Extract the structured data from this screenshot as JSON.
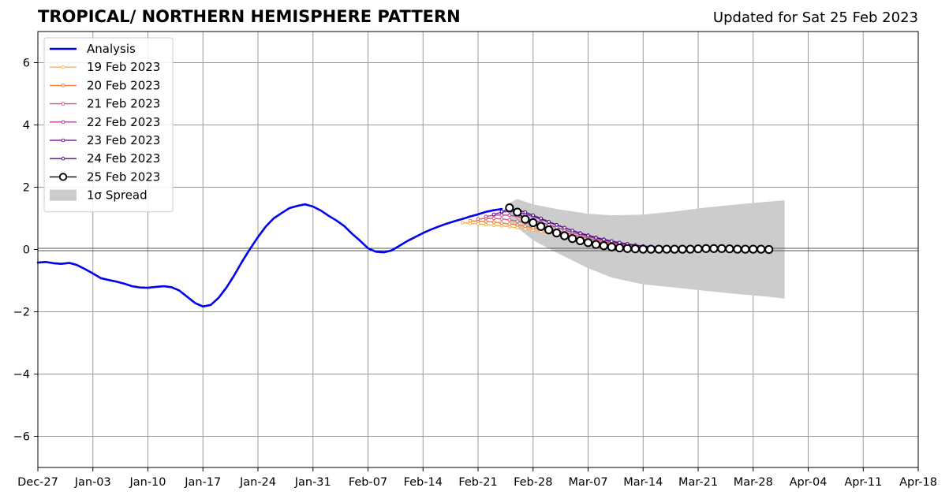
{
  "chart_data": {
    "type": "line",
    "title": "TROPICAL/ NORTHERN HEMISPHERE PATTERN",
    "subtitle": "Updated for Sat 25 Feb 2023",
    "xlabel": "",
    "ylabel": "",
    "xlim": [
      "2022-12-27",
      "2023-04-18"
    ],
    "ylim": [
      -7,
      7
    ],
    "grid": true,
    "legend_position": "top-left",
    "x_tick_labels": [
      "Dec-27",
      "Jan-03",
      "Jan-10",
      "Jan-17",
      "Jan-24",
      "Jan-31",
      "Feb-07",
      "Feb-14",
      "Feb-21",
      "Feb-28",
      "Mar-07",
      "Mar-14",
      "Mar-21",
      "Mar-28",
      "Apr-04",
      "Apr-11",
      "Apr-18"
    ],
    "y_ticks": [
      -6,
      -4,
      -2,
      0,
      2,
      4,
      6
    ],
    "analysis": {
      "name": "Analysis",
      "color": "#0000ee",
      "x": [
        "2022-12-27",
        "2022-12-28",
        "2022-12-29",
        "2022-12-30",
        "2022-12-31",
        "2023-01-01",
        "2023-01-02",
        "2023-01-03",
        "2023-01-04",
        "2023-01-05",
        "2023-01-06",
        "2023-01-07",
        "2023-01-08",
        "2023-01-09",
        "2023-01-10",
        "2023-01-11",
        "2023-01-12",
        "2023-01-13",
        "2023-01-14",
        "2023-01-15",
        "2023-01-16",
        "2023-01-17",
        "2023-01-18",
        "2023-01-19",
        "2023-01-20",
        "2023-01-21",
        "2023-01-22",
        "2023-01-23",
        "2023-01-24",
        "2023-01-25",
        "2023-01-26",
        "2023-01-27",
        "2023-01-28",
        "2023-01-29",
        "2023-01-30",
        "2023-01-31",
        "2023-02-01",
        "2023-02-02",
        "2023-02-03",
        "2023-02-04",
        "2023-02-05",
        "2023-02-06",
        "2023-02-07",
        "2023-02-08",
        "2023-02-09",
        "2023-02-10",
        "2023-02-11",
        "2023-02-12",
        "2023-02-13",
        "2023-02-14",
        "2023-02-15",
        "2023-02-16",
        "2023-02-17",
        "2023-02-18",
        "2023-02-19",
        "2023-02-20",
        "2023-02-21",
        "2023-02-22",
        "2023-02-23",
        "2023-02-24"
      ],
      "y": [
        -0.42,
        -0.4,
        -0.44,
        -0.46,
        -0.43,
        -0.5,
        -0.63,
        -0.77,
        -0.92,
        -0.98,
        -1.03,
        -1.1,
        -1.18,
        -1.22,
        -1.23,
        -1.2,
        -1.18,
        -1.21,
        -1.32,
        -1.52,
        -1.72,
        -1.83,
        -1.78,
        -1.55,
        -1.22,
        -0.82,
        -0.38,
        0.02,
        0.4,
        0.74,
        1.0,
        1.17,
        1.33,
        1.4,
        1.45,
        1.38,
        1.25,
        1.08,
        0.93,
        0.75,
        0.5,
        0.28,
        0.04,
        -0.07,
        -0.09,
        -0.03,
        0.12,
        0.27,
        0.4,
        0.53,
        0.64,
        0.74,
        0.83,
        0.91,
        0.98,
        1.06,
        1.13,
        1.21,
        1.26,
        1.3
      ]
    },
    "forecasts": [
      {
        "name": "19 Feb 2023",
        "color": "#f9b44a",
        "start": "2023-02-19",
        "y": [
          0.86,
          0.84,
          0.82,
          0.8,
          0.78,
          0.76,
          0.73,
          0.7,
          0.66,
          0.62,
          0.58,
          0.53,
          0.48,
          0.43,
          0.38,
          0.33,
          0.28,
          0.23,
          0.19,
          0.15,
          0.12,
          0.09,
          0.07,
          0.05
        ]
      },
      {
        "name": "20 Feb 2023",
        "color": "#f07f3f",
        "start": "2023-02-20",
        "y": [
          0.92,
          0.91,
          0.9,
          0.88,
          0.85,
          0.82,
          0.79,
          0.75,
          0.7,
          0.65,
          0.6,
          0.54,
          0.48,
          0.42,
          0.36,
          0.3,
          0.25,
          0.2,
          0.16,
          0.13,
          0.1,
          0.08,
          0.06,
          0.05
        ]
      },
      {
        "name": "21 Feb 2023",
        "color": "#dd5c6e",
        "start": "2023-02-21",
        "y": [
          0.98,
          1.0,
          1.0,
          0.98,
          0.95,
          0.91,
          0.86,
          0.8,
          0.74,
          0.68,
          0.61,
          0.55,
          0.48,
          0.42,
          0.36,
          0.3,
          0.25,
          0.2,
          0.16,
          0.12,
          0.1,
          0.08,
          0.06,
          0.05
        ]
      },
      {
        "name": "22 Feb 2023",
        "color": "#b83d95",
        "start": "2023-02-22",
        "y": [
          1.06,
          1.1,
          1.11,
          1.1,
          1.06,
          1.01,
          0.94,
          0.87,
          0.79,
          0.71,
          0.63,
          0.55,
          0.48,
          0.41,
          0.35,
          0.29,
          0.24,
          0.19,
          0.15,
          0.12,
          0.09,
          0.07,
          0.05,
          0.04
        ]
      },
      {
        "name": "23 Feb 2023",
        "color": "#8d1aa8",
        "start": "2023-02-23",
        "y": [
          1.13,
          1.2,
          1.22,
          1.2,
          1.14,
          1.06,
          0.97,
          0.88,
          0.79,
          0.7,
          0.61,
          0.53,
          0.46,
          0.39,
          0.33,
          0.27,
          0.22,
          0.18,
          0.14,
          0.11,
          0.09,
          0.07,
          0.05,
          0.04
        ]
      },
      {
        "name": "24 Feb 2023",
        "color": "#4b0f8c",
        "start": "2023-02-24",
        "y": [
          1.22,
          1.3,
          1.28,
          1.2,
          1.1,
          1.0,
          0.89,
          0.79,
          0.7,
          0.61,
          0.52,
          0.45,
          0.38,
          0.32,
          0.27,
          0.22,
          0.18,
          0.14,
          0.11,
          0.09,
          0.07,
          0.05,
          0.04,
          0.03
        ]
      },
      {
        "name": "25 Feb 2023",
        "color": "#000000",
        "start": "2023-02-25",
        "y": [
          1.34,
          1.2,
          0.97,
          0.86,
          0.74,
          0.63,
          0.53,
          0.44,
          0.35,
          0.28,
          0.22,
          0.16,
          0.12,
          0.08,
          0.05,
          0.03,
          0.02,
          0.01,
          0.01,
          0.01,
          0.01,
          0.01,
          0.01,
          0.01,
          0.02,
          0.03,
          0.03,
          0.03,
          0.02,
          0.01,
          0.01,
          0.01,
          0.01,
          0.0
        ]
      }
    ],
    "spread": {
      "name": "1σ Spread",
      "color": "#cccccc",
      "x": [
        "2023-02-25",
        "2023-02-26",
        "2023-02-28",
        "2023-03-03",
        "2023-03-07",
        "2023-03-10",
        "2023-03-14",
        "2023-03-18",
        "2023-03-22",
        "2023-03-26",
        "2023-03-30",
        "2023-04-01"
      ],
      "upper": [
        1.5,
        1.62,
        1.45,
        1.3,
        1.15,
        1.1,
        1.12,
        1.22,
        1.35,
        1.45,
        1.54,
        1.58
      ],
      "lower": [
        0.9,
        0.7,
        0.3,
        -0.1,
        -0.6,
        -0.9,
        -1.12,
        -1.22,
        -1.33,
        -1.43,
        -1.52,
        -1.58
      ]
    }
  }
}
